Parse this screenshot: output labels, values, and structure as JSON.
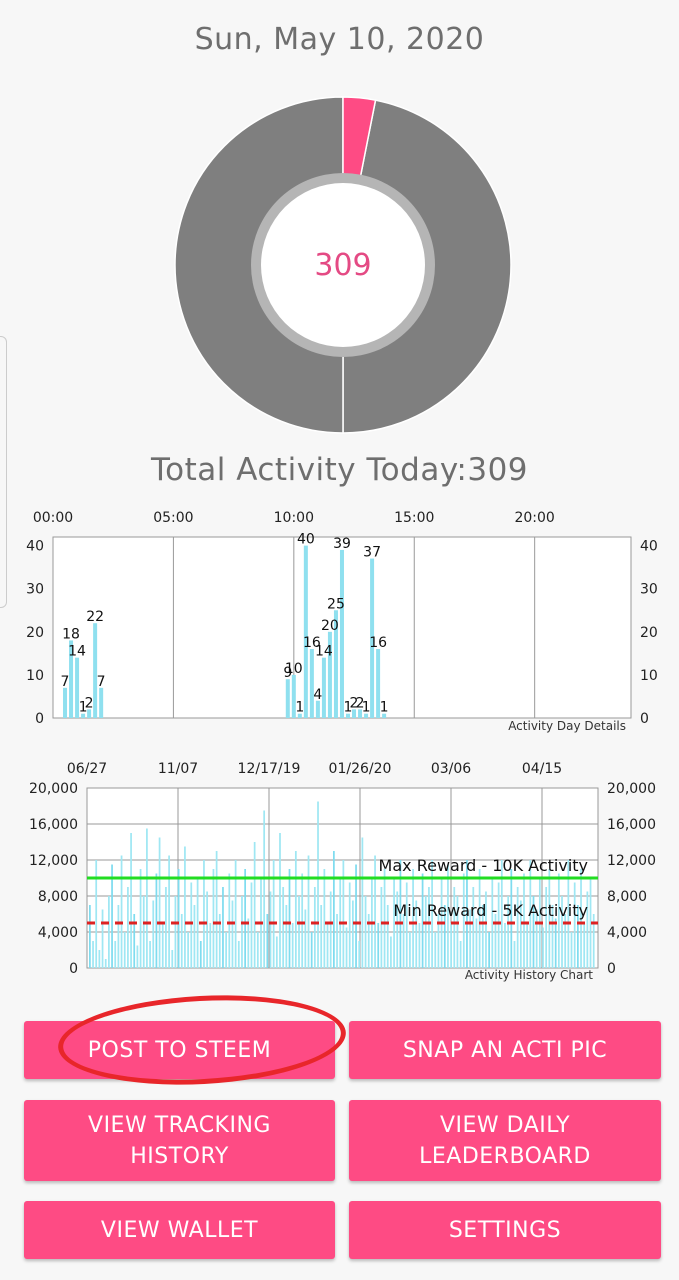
{
  "header": {
    "date": "Sun, May 10, 2020"
  },
  "donut": {
    "center_value": "309",
    "active_fraction": 0.031,
    "colors": {
      "active": "#fe4b84",
      "rest": "#7f7f7f"
    }
  },
  "summary": {
    "total_text": "Total Activity Today:309"
  },
  "chart_data": [
    {
      "type": "bar",
      "title": "Activity Day Details",
      "x_ticks": [
        "00:00",
        "05:00",
        "10:00",
        "15:00",
        "20:00"
      ],
      "y_ticks": [
        "0",
        "10",
        "20",
        "30",
        "40"
      ],
      "ylim": [
        0,
        42
      ],
      "series": [
        {
          "values": [
            {
              "x": 0.25,
              "y": 7,
              "label": "7"
            },
            {
              "x": 0.5,
              "y": 18,
              "label": "18"
            },
            {
              "x": 0.75,
              "y": 14,
              "label": "14"
            },
            {
              "x": 1.0,
              "y": 1,
              "label": "1"
            },
            {
              "x": 1.25,
              "y": 2,
              "label": "2"
            },
            {
              "x": 1.5,
              "y": 22,
              "label": "22"
            },
            {
              "x": 1.75,
              "y": 7,
              "label": "7"
            },
            {
              "x": 9.5,
              "y": 9,
              "label": "9"
            },
            {
              "x": 9.75,
              "y": 10,
              "label": "10"
            },
            {
              "x": 10.0,
              "y": 1,
              "label": "1"
            },
            {
              "x": 10.25,
              "y": 40,
              "label": "40"
            },
            {
              "x": 10.5,
              "y": 16,
              "label": "16"
            },
            {
              "x": 10.75,
              "y": 4,
              "label": "4"
            },
            {
              "x": 11.0,
              "y": 14,
              "label": "14"
            },
            {
              "x": 11.25,
              "y": 20,
              "label": "20"
            },
            {
              "x": 11.5,
              "y": 25,
              "label": "25"
            },
            {
              "x": 11.75,
              "y": 39,
              "label": "39"
            },
            {
              "x": 12.0,
              "y": 1,
              "label": "1"
            },
            {
              "x": 12.25,
              "y": 2,
              "label": "2"
            },
            {
              "x": 12.5,
              "y": 2,
              "label": "2"
            },
            {
              "x": 12.75,
              "y": 1,
              "label": "1"
            },
            {
              "x": 13.0,
              "y": 37,
              "label": "37"
            },
            {
              "x": 13.25,
              "y": 16,
              "label": "16"
            },
            {
              "x": 13.5,
              "y": 1,
              "label": "1"
            }
          ]
        }
      ]
    },
    {
      "type": "bar",
      "title": "Activity History Chart",
      "x_ticks": [
        "06/27",
        "11/07",
        "12/17/19",
        "01/26/20",
        "03/06",
        "04/15"
      ],
      "y_ticks": [
        "0",
        "4,000",
        "8,000",
        "12,000",
        "16,000",
        "20,000"
      ],
      "ylim": [
        0,
        20000
      ],
      "values": [
        7000,
        3000,
        12000,
        2000,
        6500,
        1000,
        8000,
        11500,
        3000,
        7000,
        12500,
        4000,
        9000,
        15000,
        6000,
        2500,
        11000,
        8000,
        15500,
        3000,
        7500,
        10500,
        14500,
        5000,
        9000,
        12500,
        2000,
        8000,
        11000,
        6000,
        13500,
        4000,
        9500,
        7000,
        10000,
        3000,
        12000,
        8500,
        5000,
        11000,
        13000,
        6000,
        9000,
        4000,
        10500,
        7500,
        12000,
        3000,
        8000,
        11000,
        5500,
        9500,
        14000,
        4000,
        10000,
        17500,
        6000,
        8500,
        12000,
        3500,
        15000,
        9000,
        7000,
        11000,
        5000,
        13000,
        8000,
        10500,
        6500,
        12500,
        4000,
        9000,
        18500,
        7000,
        11000,
        5000,
        8500,
        13000,
        6000,
        10000,
        12000,
        4500,
        9500,
        7500,
        11500,
        3000,
        14500,
        8000,
        6000,
        10000,
        12500,
        5000,
        9000,
        11000,
        7000,
        3500,
        10000,
        8500,
        12000,
        6000,
        9500,
        4000,
        11000,
        7500,
        5000,
        10500,
        8000,
        9000,
        12000,
        4000,
        6000,
        10000,
        7000,
        11500,
        5000,
        9000,
        8000,
        3000,
        10500,
        12000,
        6500,
        9000,
        5500,
        11000,
        7000,
        8500,
        4000,
        10000,
        6000,
        9500,
        12000,
        5000,
        8000,
        11000,
        3000,
        9000,
        7500,
        10500,
        5000,
        12000,
        8000,
        6500,
        10000,
        4500,
        9000,
        11000,
        7000,
        5500,
        10500,
        8000,
        6000,
        12000,
        4000,
        9500,
        7000,
        11000,
        5000,
        8500,
        10000,
        6000
      ],
      "reference_lines": [
        {
          "name": "Max Reward - 10K Activity",
          "value": 10000,
          "color": "#22dd22",
          "style": "solid"
        },
        {
          "name": "Min Reward - 5K Activity",
          "value": 5000,
          "color": "#dd2222",
          "style": "dashed"
        }
      ],
      "colors": {
        "bar": "#9fe7f3",
        "bar_strong": "#7fdcef"
      }
    }
  ],
  "buttons": {
    "post_to_steem": "POST TO STEEM",
    "snap_acti_pic": "SNAP AN ACTI PIC",
    "view_tracking_history": "VIEW TRACKING\nHISTORY",
    "view_daily_leaderboard": "VIEW DAILY\nLEADERBOARD",
    "view_wallet": "VIEW WALLET",
    "settings": "SETTINGS"
  },
  "accent": "#fe4b84"
}
